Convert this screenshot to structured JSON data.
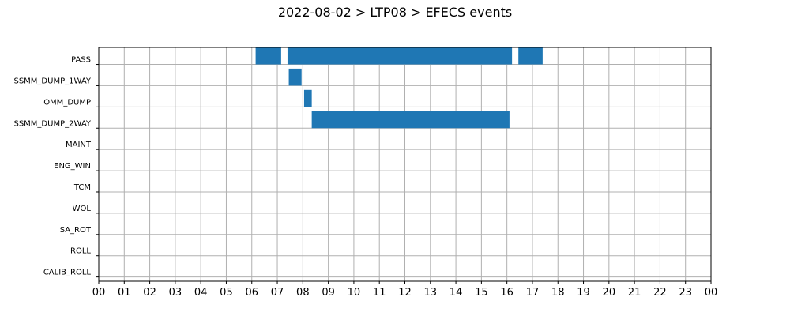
{
  "chart_data": {
    "type": "gantt",
    "title": "2022-08-02 > LTP08 > EFECS events",
    "xlabel": "",
    "ylabel": "",
    "x_tick_labels": [
      "00",
      "01",
      "02",
      "03",
      "04",
      "05",
      "06",
      "07",
      "08",
      "09",
      "10",
      "11",
      "12",
      "13",
      "14",
      "15",
      "16",
      "17",
      "18",
      "19",
      "20",
      "21",
      "22",
      "23",
      "00"
    ],
    "x_range_hours": [
      0,
      24
    ],
    "grid": true,
    "categories": [
      "PASS",
      "SSMM_DUMP_1WAY",
      "OMM_DUMP",
      "SSMM_DUMP_2WAY",
      "MAINT",
      "ENG_WIN",
      "TCM",
      "WOL",
      "SA_ROT",
      "ROLL",
      "CALIB_ROLL"
    ],
    "bar_color": "#1f77b4",
    "events": [
      {
        "category": "PASS",
        "start": 6.15,
        "end": 7.15
      },
      {
        "category": "PASS",
        "start": 7.4,
        "end": 16.2
      },
      {
        "category": "PASS",
        "start": 16.45,
        "end": 17.4
      },
      {
        "category": "SSMM_DUMP_1WAY",
        "start": 7.45,
        "end": 7.95
      },
      {
        "category": "OMM_DUMP",
        "start": 8.05,
        "end": 8.35
      },
      {
        "category": "SSMM_DUMP_2WAY",
        "start": 8.35,
        "end": 16.1
      }
    ]
  }
}
